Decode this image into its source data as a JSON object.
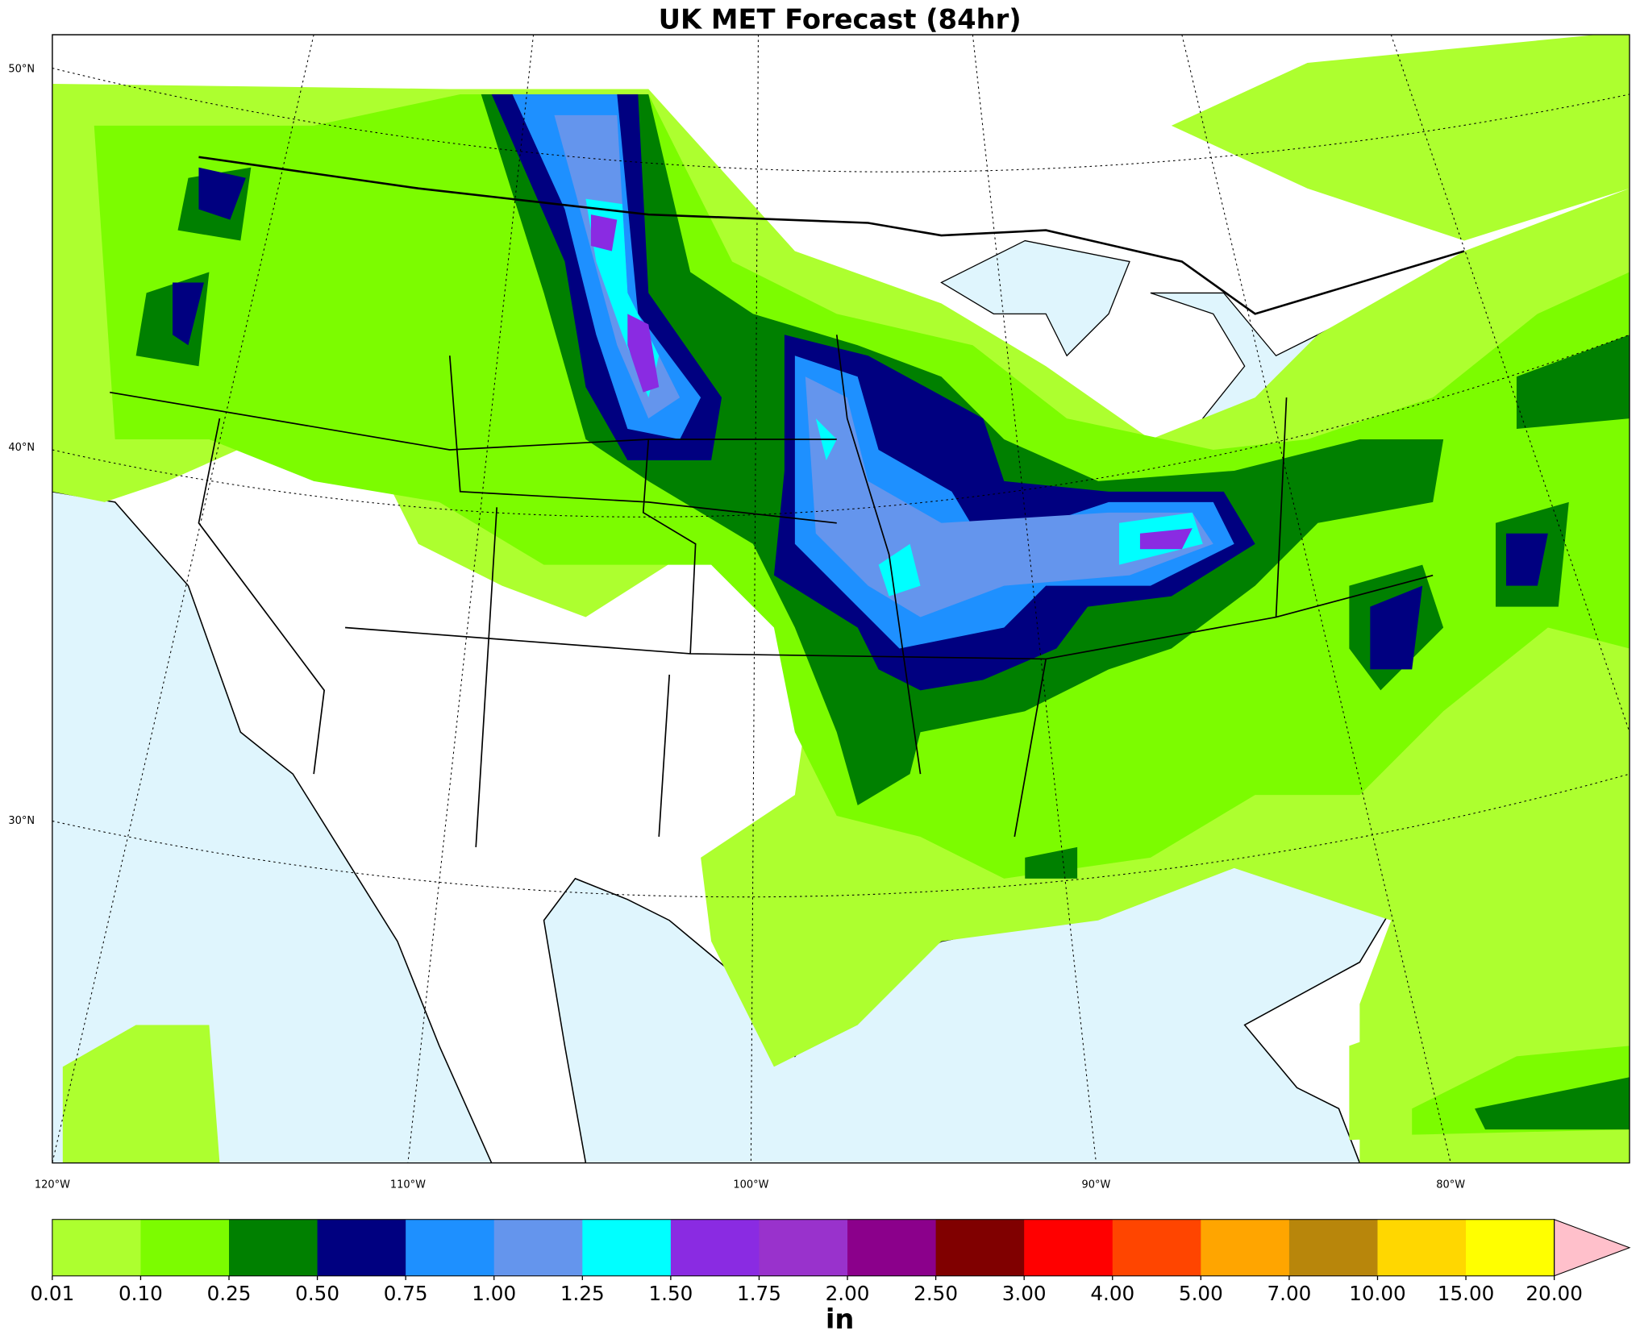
{
  "title": "UK MET Forecast (84hr)",
  "lat_labels": [
    "50°N",
    "40°N",
    "30°N"
  ],
  "lon_labels": [
    "120°W",
    "110°W",
    "100°W",
    "90°W",
    "80°W"
  ],
  "colorbar": {
    "unit": "in",
    "levels": [
      {
        "value": 0.01,
        "label": "0.01"
      },
      {
        "value": 0.1,
        "label": "0.10"
      },
      {
        "value": 0.25,
        "label": "0.25"
      },
      {
        "value": 0.5,
        "label": "0.50"
      },
      {
        "value": 0.75,
        "label": "0.75"
      },
      {
        "value": 1,
        "label": "1.00"
      },
      {
        "value": 1.25,
        "label": "1.25"
      },
      {
        "value": 1.5,
        "label": "1.50"
      },
      {
        "value": 1.75,
        "label": "1.75"
      },
      {
        "value": 2,
        "label": "2.00"
      },
      {
        "value": 2.5,
        "label": "2.50"
      },
      {
        "value": 3,
        "label": "3.00"
      },
      {
        "value": 4,
        "label": "4.00"
      },
      {
        "value": 5,
        "label": "5.00"
      },
      {
        "value": 7,
        "label": "7.00"
      },
      {
        "value": 10,
        "label": "10.00"
      },
      {
        "value": 15,
        "label": "15.00"
      },
      {
        "value": 20,
        "label": "20.00"
      }
    ],
    "colors": [
      "#adff2f",
      "#7cfc00",
      "#008000",
      "#000080",
      "#1e90ff",
      "#6495ed",
      "#00ffff",
      "#8a2be2",
      "#9932cc",
      "#8b008b",
      "#800000",
      "#ff0000",
      "#ff4500",
      "#ffa500",
      "#b8860b",
      "#ffd700",
      "#ffff00"
    ],
    "extend_color": "#ffc0cb"
  }
}
